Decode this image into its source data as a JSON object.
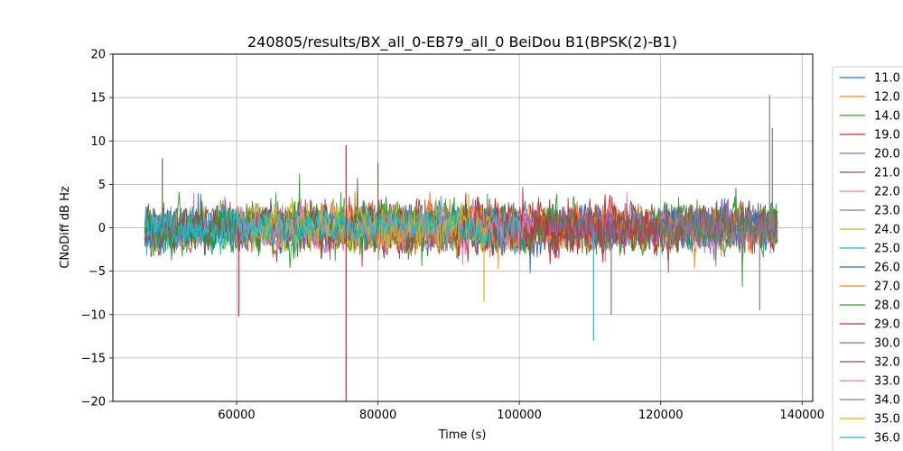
{
  "chart_data": {
    "type": "line",
    "title": "240805/results/BX_all_0-EB79_all_0 BeiDou B1(BPSK(2)-B1)",
    "xlabel": "Time (s)",
    "ylabel": "CNoDiff dB Hz",
    "xlim": [
      42500,
      141500
    ],
    "ylim": [
      -20,
      20
    ],
    "x_ticks": [
      60000,
      80000,
      100000,
      120000,
      140000
    ],
    "x_tick_labels": [
      "60000",
      "80000",
      "100000",
      "120000",
      "140000"
    ],
    "y_ticks": [
      -20,
      -15,
      -10,
      -5,
      0,
      5,
      10,
      15,
      20
    ],
    "y_tick_labels": [
      "−20",
      "−15",
      "−10",
      "−5",
      "0",
      "5",
      "10",
      "15",
      "20"
    ],
    "grid": true,
    "legend_position": "outside-right",
    "series": [
      {
        "name": "11.0",
        "color": "#1f77b4",
        "x_range": [
          47000,
          136500
        ],
        "amplitude": 2.0,
        "seed": 11
      },
      {
        "name": "12.0",
        "color": "#ff7f0e",
        "x_range": [
          47000,
          136500
        ],
        "amplitude": 1.8,
        "seed": 12
      },
      {
        "name": "14.0",
        "color": "#2ca02c",
        "x_range": [
          47000,
          136500
        ],
        "amplitude": 2.2,
        "seed": 14
      },
      {
        "name": "19.0",
        "color": "#d62728",
        "x_range": [
          60000,
          115000
        ],
        "amplitude": 2.4,
        "seed": 19
      },
      {
        "name": "20.0",
        "color": "#9467bd",
        "x_range": [
          47000,
          136500
        ],
        "amplitude": 1.8,
        "seed": 20
      },
      {
        "name": "21.0",
        "color": "#8c564b",
        "x_range": [
          47000,
          136500
        ],
        "amplitude": 2.0,
        "seed": 21
      },
      {
        "name": "22.0",
        "color": "#e377c2",
        "x_range": [
          47000,
          136500
        ],
        "amplitude": 1.8,
        "seed": 22
      },
      {
        "name": "23.0",
        "color": "#7f7f7f",
        "x_range": [
          84000,
          136500
        ],
        "amplitude": 1.6,
        "seed": 23
      },
      {
        "name": "24.0",
        "color": "#bcbd22",
        "x_range": [
          60000,
          96000
        ],
        "amplitude": 2.0,
        "seed": 24
      },
      {
        "name": "25.0",
        "color": "#17becf",
        "x_range": [
          47000,
          60000
        ],
        "amplitude": 1.8,
        "seed": 25
      },
      {
        "name": "26.0",
        "color": "#1f77b4",
        "x_range": [
          47000,
          136500
        ],
        "amplitude": 1.8,
        "seed": 26
      },
      {
        "name": "27.0",
        "color": "#ff7f0e",
        "x_range": [
          75000,
          136500
        ],
        "amplitude": 1.8,
        "seed": 27
      },
      {
        "name": "28.0",
        "color": "#2ca02c",
        "x_range": [
          47000,
          136500
        ],
        "amplitude": 2.0,
        "seed": 28
      },
      {
        "name": "29.0",
        "color": "#d62728",
        "x_range": [
          90000,
          120000
        ],
        "amplitude": 2.2,
        "seed": 29
      },
      {
        "name": "30.0",
        "color": "#9467bd",
        "x_range": [
          104000,
          136500
        ],
        "amplitude": 2.0,
        "seed": 30
      },
      {
        "name": "32.0",
        "color": "#8c564b",
        "x_range": [
          47000,
          136500
        ],
        "amplitude": 2.0,
        "seed": 32
      },
      {
        "name": "33.0",
        "color": "#e377c2",
        "x_range": [
          60000,
          102000
        ],
        "amplitude": 1.8,
        "seed": 33
      },
      {
        "name": "34.0",
        "color": "#7f7f7f",
        "x_range": [
          120000,
          136500
        ],
        "amplitude": 1.8,
        "seed": 34
      },
      {
        "name": "35.0",
        "color": "#bcbd22",
        "x_range": [
          62000,
          96000
        ],
        "amplitude": 2.0,
        "seed": 35
      },
      {
        "name": "36.0",
        "color": "#17becf",
        "x_range": [
          47000,
          100000
        ],
        "amplitude": 1.6,
        "seed": 36
      }
    ],
    "notable_excursions": [
      {
        "x": 75500,
        "y": -20,
        "color": "#d62728"
      },
      {
        "x": 75500,
        "y": 9.5,
        "color": "#d62728"
      },
      {
        "x": 60300,
        "y": -10.2,
        "color": "#d62728"
      },
      {
        "x": 110500,
        "y": -13,
        "color": "#17becf"
      },
      {
        "x": 135400,
        "y": 15.3,
        "color": "#7f7f7f"
      },
      {
        "x": 135800,
        "y": 11.5,
        "color": "#7f7f7f"
      },
      {
        "x": 134000,
        "y": -9.5,
        "color": "#7f7f7f"
      },
      {
        "x": 113000,
        "y": -10,
        "color": "#9467bd"
      },
      {
        "x": 49500,
        "y": 8,
        "color": "#8c564b"
      },
      {
        "x": 95000,
        "y": -8.5,
        "color": "#bcbd22"
      },
      {
        "x": 80000,
        "y": 7.5,
        "color": "#8c564b"
      }
    ]
  }
}
